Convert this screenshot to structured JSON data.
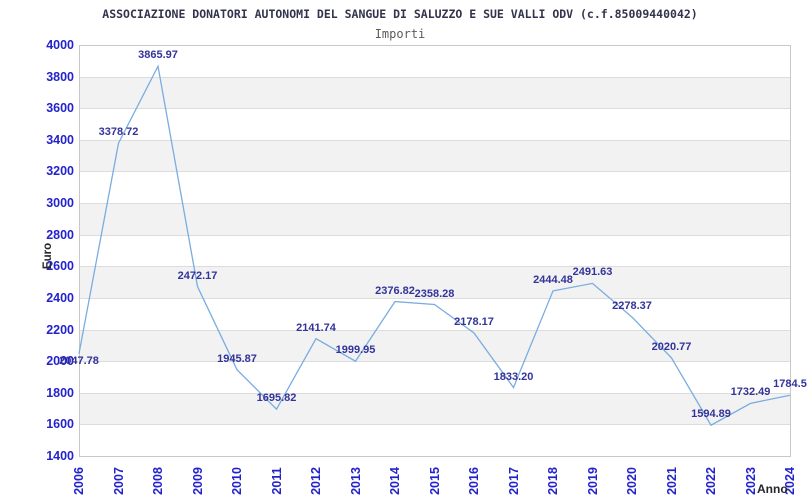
{
  "header": {
    "title": "ASSOCIAZIONE DONATORI AUTONOMI DEL SANGUE DI SALUZZO E SUE VALLI ODV (c.f.85009440042)",
    "subtitle": "Importi"
  },
  "chart_data": {
    "type": "line",
    "title": "ASSOCIAZIONE DONATORI AUTONOMI DEL SANGUE DI SALUZZO E SUE VALLI ODV (c.f.85009440042)",
    "subtitle": "Importi",
    "xlabel": "Anno",
    "ylabel": "Euro",
    "categories": [
      "2006",
      "2007",
      "2008",
      "2009",
      "2010",
      "2011",
      "2012",
      "2013",
      "2014",
      "2015",
      "2016",
      "2017",
      "2018",
      "2019",
      "2020",
      "2021",
      "2022",
      "2023",
      "2024"
    ],
    "series": [
      {
        "name": "Importi",
        "values": [
          2047.78,
          3378.72,
          3865.97,
          2472.17,
          1945.87,
          1695.82,
          2141.74,
          1999.95,
          2376.82,
          2358.28,
          2178.17,
          1833.2,
          2444.48,
          2491.63,
          2278.37,
          2020.77,
          1594.89,
          1732.49,
          1784.5
        ],
        "value_labels": [
          "2047.78",
          "3378.72",
          "3865.97",
          "2472.17",
          "1945.87",
          "1695.82",
          "2141.74",
          "1999.95",
          "2376.82",
          "2358.28",
          "2178.17",
          "1833.20",
          "2444.48",
          "2491.63",
          "2278.37",
          "2020.77",
          "1594.89",
          "1732.49",
          "1784.5"
        ]
      }
    ],
    "ylim": [
      1400,
      4000
    ],
    "ytick_step": 200,
    "ytick_labels": [
      "1400",
      "1600",
      "1800",
      "2000",
      "2200",
      "2400",
      "2600",
      "2800",
      "3000",
      "3200",
      "3400",
      "3600",
      "3800",
      "4000"
    ],
    "grid": "horizontal, alternating shaded bands every 200",
    "legend_position": "none",
    "colors": {
      "line": "#79ade0",
      "tick_label": "#2323cc",
      "value_label": "#333399",
      "band_fill": "#f2f2f2",
      "gridline": "#dcdcdc",
      "plot_border": "#c8c8c8",
      "title_text": "#33334d",
      "subtitle_text": "#5c5c5c",
      "axis_title_text": "#26262e",
      "background": "#ffffff"
    }
  }
}
